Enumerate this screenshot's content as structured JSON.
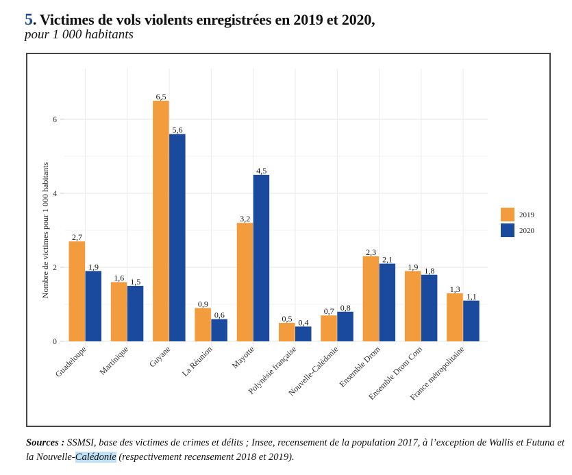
{
  "figure": {
    "number": "5",
    "title": ". Victimes de vols violents enregistrées en 2019 et 2020,",
    "subtitle": "pour 1 000 habitants"
  },
  "sources": {
    "label": "Sources",
    "sep": " : ",
    "text_part1": "SSMSI, base des victimes de crimes et délits ; Insee, recensement de la population 2017, à l’exception de Wallis et Futuna et la Nouvelle-",
    "text_highlight": "Calédonie",
    "text_part2": " (respectivement recensement 2018 et 2019)."
  },
  "colors": {
    "2019": "#f39c3d",
    "2020": "#1a4a9e",
    "title_number": "#1f4a9a"
  },
  "chart_data": {
    "type": "bar",
    "title": "Victimes de vols violents enregistrées en 2019 et 2020, pour 1 000 habitants",
    "xlabel": "",
    "ylabel": "Nombre de victimes pour 1 000 habitants",
    "ylim": [
      0,
      6.8
    ],
    "yticks": [
      0,
      2,
      4,
      6
    ],
    "grid": true,
    "legend_position": "right",
    "categories": [
      "Guadeloupe",
      "Martinique",
      "Guyane",
      "La Réunion",
      "Mayotte",
      "Polynésie française",
      "Nouvelle-Calédonie",
      "Ensemble Drom",
      "Ensemble Drom Com",
      "France métropolitaine"
    ],
    "series": [
      {
        "name": "2019",
        "values": [
          2.7,
          1.6,
          6.5,
          0.9,
          3.2,
          0.5,
          0.7,
          2.3,
          1.9,
          1.3
        ],
        "labels": [
          "2,7",
          "1,6",
          "6,5",
          "0,9",
          "3,2",
          "0,5",
          "0,7",
          "2,3",
          "1,9",
          "1,3"
        ]
      },
      {
        "name": "2020",
        "values": [
          1.9,
          1.5,
          5.6,
          0.6,
          4.5,
          0.4,
          0.8,
          2.1,
          1.8,
          1.1
        ],
        "labels": [
          "1,9",
          "1,5",
          "5,6",
          "0,6",
          "4,5",
          "0,4",
          "0,8",
          "2,1",
          "1,8",
          "1,1"
        ]
      }
    ]
  }
}
